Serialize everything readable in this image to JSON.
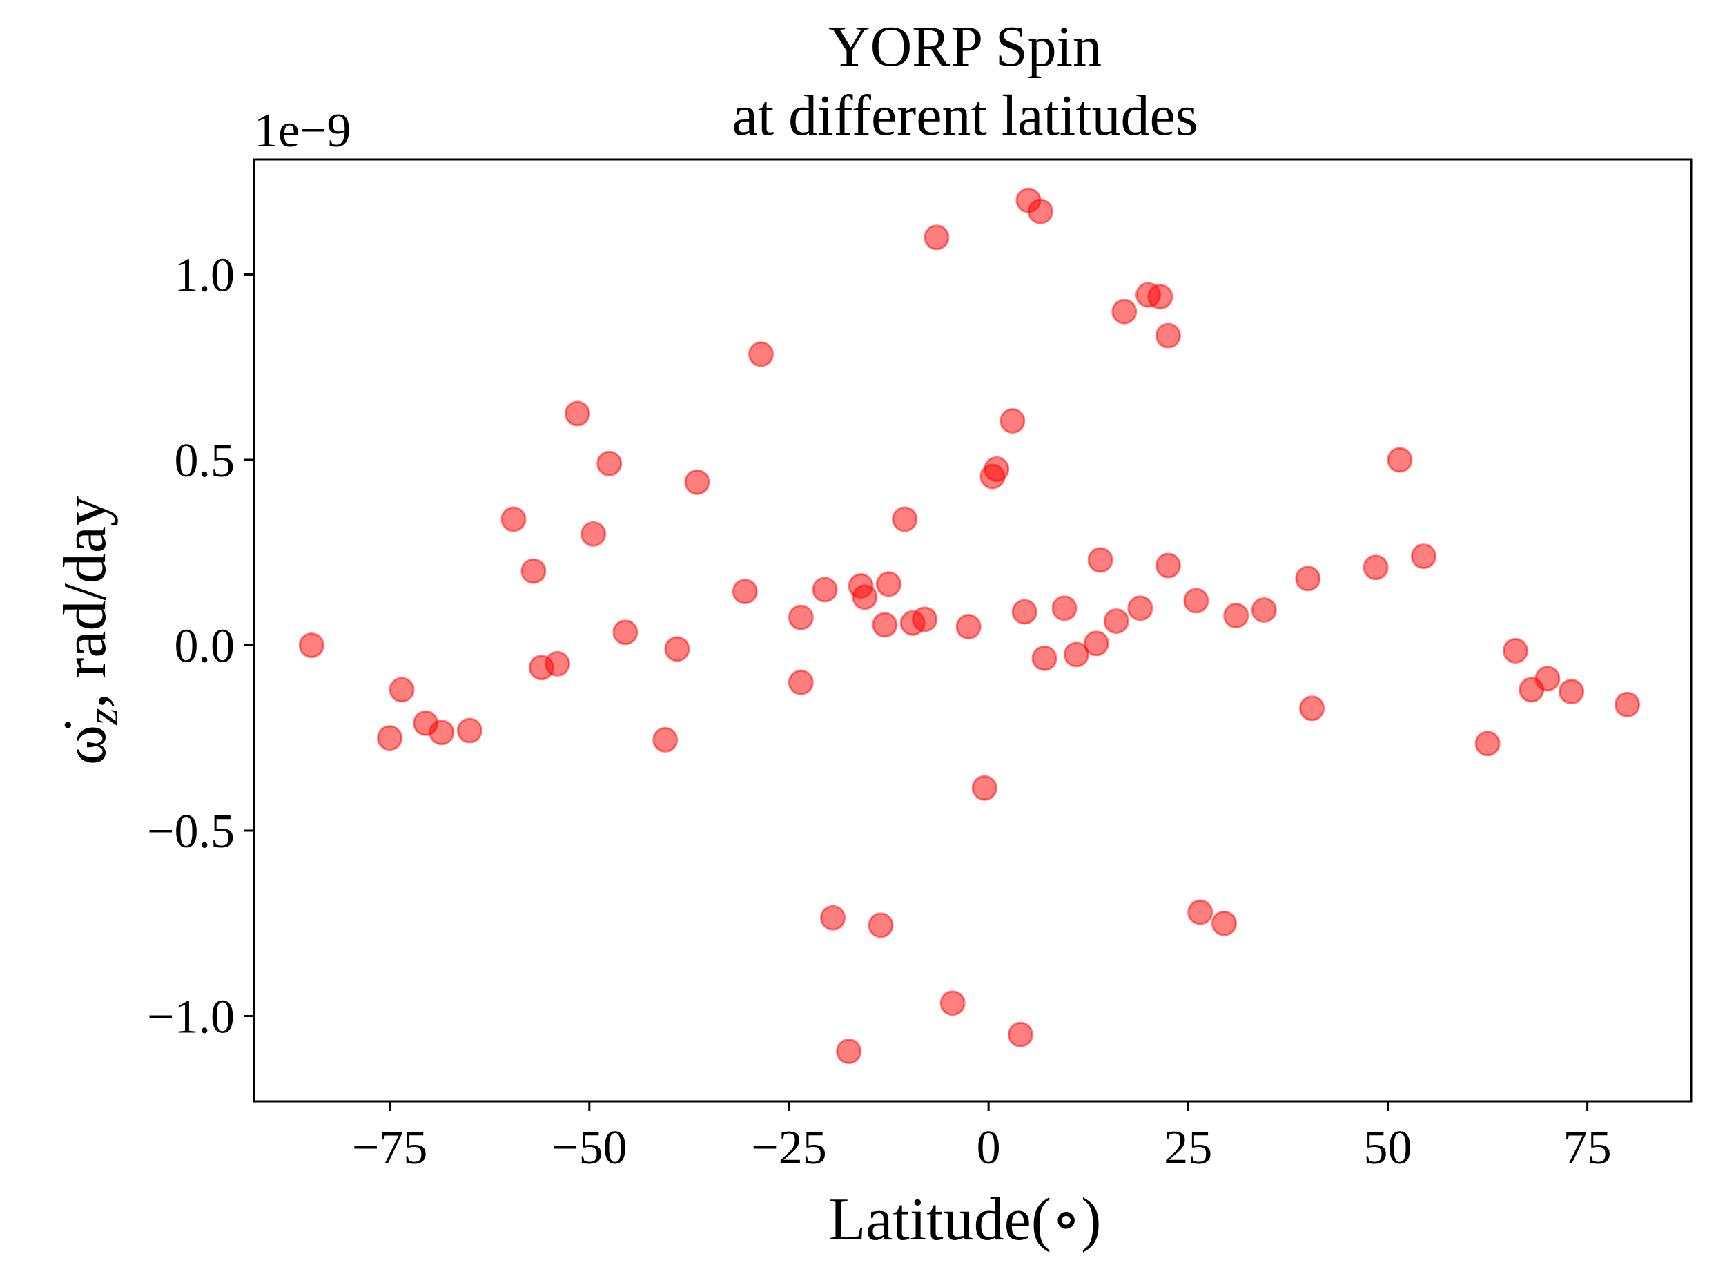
{
  "chart_data": {
    "type": "scatter",
    "title_lines": [
      "YORP Spin",
      "at different latitudes"
    ],
    "xlabel": "Latitude(∘)",
    "ylabel_parts": {
      "symbol": "ω̇",
      "subscript": "z",
      "rest": ", rad/day"
    },
    "y_offset_text": "1e−9",
    "xlim": [
      -92,
      88
    ],
    "ylim": [
      -1.23,
      1.31
    ],
    "xticks": [
      -75,
      -50,
      -25,
      0,
      25,
      50,
      75
    ],
    "xtick_labels": [
      "−75",
      "−50",
      "−25",
      "0",
      "25",
      "50",
      "75"
    ],
    "yticks": [
      -1.0,
      -0.5,
      0.0,
      0.5,
      1.0
    ],
    "ytick_labels": [
      "−1.0",
      "−0.5",
      "0.0",
      "0.5",
      "1.0"
    ],
    "y_unit_multiplier": 1e-09,
    "marker_color": "#ff0000",
    "marker_alpha": 0.5,
    "grid": false,
    "legend": "none",
    "points": [
      [
        -84.8,
        0.0
      ],
      [
        -75.0,
        -0.25
      ],
      [
        -73.5,
        -0.12
      ],
      [
        -70.5,
        -0.21
      ],
      [
        -68.5,
        -0.235
      ],
      [
        -65.0,
        -0.23
      ],
      [
        -59.5,
        0.34
      ],
      [
        -57.0,
        0.2
      ],
      [
        -56.0,
        -0.06
      ],
      [
        -54.0,
        -0.05
      ],
      [
        -51.5,
        0.625
      ],
      [
        -49.5,
        0.3
      ],
      [
        -47.5,
        0.49
      ],
      [
        -45.5,
        0.035
      ],
      [
        -39.0,
        -0.01
      ],
      [
        -40.5,
        -0.255
      ],
      [
        -36.5,
        0.44
      ],
      [
        -30.5,
        0.145
      ],
      [
        -28.5,
        0.785
      ],
      [
        -23.5,
        0.075
      ],
      [
        -23.5,
        -0.1
      ],
      [
        -20.5,
        0.15
      ],
      [
        -16.0,
        0.16
      ],
      [
        -15.5,
        0.13
      ],
      [
        -12.5,
        0.165
      ],
      [
        -13.0,
        0.055
      ],
      [
        -10.5,
        0.34
      ],
      [
        -9.5,
        0.06
      ],
      [
        -8.0,
        0.07
      ],
      [
        -6.5,
        1.1
      ],
      [
        -19.5,
        -0.735
      ],
      [
        -13.5,
        -0.755
      ],
      [
        -17.5,
        -1.095
      ],
      [
        -4.5,
        -0.965
      ],
      [
        -2.5,
        0.05
      ],
      [
        -0.5,
        -0.385
      ],
      [
        0.5,
        0.455
      ],
      [
        1.0,
        0.475
      ],
      [
        3.0,
        0.605
      ],
      [
        4.5,
        0.09
      ],
      [
        5.0,
        1.2
      ],
      [
        6.5,
        1.17
      ],
      [
        7.0,
        -0.035
      ],
      [
        9.5,
        0.1
      ],
      [
        11.0,
        -0.025
      ],
      [
        13.5,
        0.005
      ],
      [
        14.0,
        0.23
      ],
      [
        16.0,
        0.065
      ],
      [
        17.0,
        0.9
      ],
      [
        19.0,
        0.1
      ],
      [
        20.0,
        0.945
      ],
      [
        21.5,
        0.94
      ],
      [
        22.5,
        0.835
      ],
      [
        22.5,
        0.215
      ],
      [
        26.0,
        0.12
      ],
      [
        4.0,
        -1.05
      ],
      [
        26.5,
        -0.72
      ],
      [
        29.5,
        -0.75
      ],
      [
        31.0,
        0.08
      ],
      [
        34.5,
        0.095
      ],
      [
        40.0,
        0.18
      ],
      [
        40.5,
        -0.17
      ],
      [
        48.5,
        0.21
      ],
      [
        51.5,
        0.5
      ],
      [
        54.5,
        0.24
      ],
      [
        62.5,
        -0.265
      ],
      [
        66.0,
        -0.015
      ],
      [
        68.0,
        -0.12
      ],
      [
        70.0,
        -0.09
      ],
      [
        73.0,
        -0.125
      ],
      [
        80.0,
        -0.16
      ]
    ]
  }
}
